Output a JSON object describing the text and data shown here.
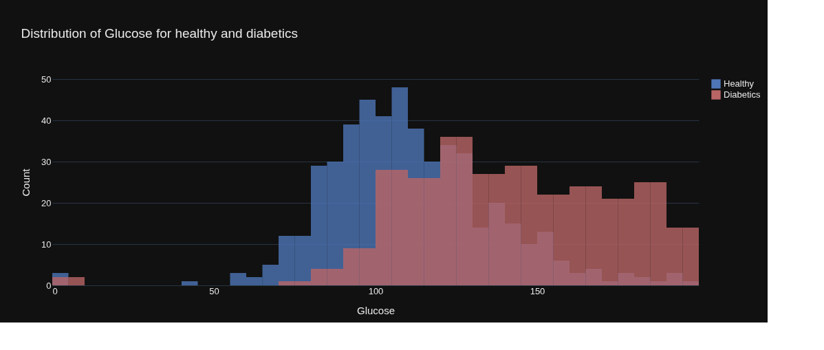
{
  "chart_data": {
    "type": "histogram",
    "title": "Distribution of Glucose for healthy and diabetics",
    "xlabel": "Glucose",
    "ylabel": "Count",
    "bins": [
      0,
      5,
      10,
      15,
      20,
      25,
      30,
      35,
      40,
      45,
      50,
      55,
      60,
      65,
      70,
      75,
      80,
      85,
      90,
      95,
      100,
      105,
      110,
      115,
      120,
      125,
      130,
      135,
      140,
      145,
      150,
      155,
      160,
      165,
      170,
      175,
      180,
      185,
      190,
      195,
      200
    ],
    "series": [
      {
        "name": "Healthy",
        "color": "#4e75b6",
        "values": [
          3,
          0,
          0,
          0,
          0,
          0,
          0,
          0,
          1,
          0,
          0,
          3,
          2,
          5,
          12,
          12,
          29,
          30,
          39,
          45,
          41,
          48,
          38,
          30,
          34,
          32,
          14,
          20,
          15,
          10,
          13,
          6,
          3,
          4,
          1,
          3,
          2,
          1,
          3,
          1
        ]
      },
      {
        "name": "Diabetics",
        "color": "#b96565",
        "values": [
          2,
          2,
          0,
          0,
          0,
          0,
          0,
          0,
          0,
          0,
          0,
          0,
          0,
          0,
          1,
          1,
          4,
          4,
          9,
          9,
          28,
          28,
          26,
          26,
          36,
          36,
          27,
          27,
          29,
          29,
          22,
          22,
          24,
          24,
          21,
          21,
          25,
          25,
          14,
          14
        ]
      }
    ],
    "xlim": [
      0,
      200
    ],
    "xticks": [
      0,
      50,
      100,
      150
    ],
    "ylim": [
      0,
      50
    ],
    "yticks": [
      0,
      10,
      20,
      30,
      40,
      50
    ],
    "grid": "y",
    "legend": "top right"
  }
}
